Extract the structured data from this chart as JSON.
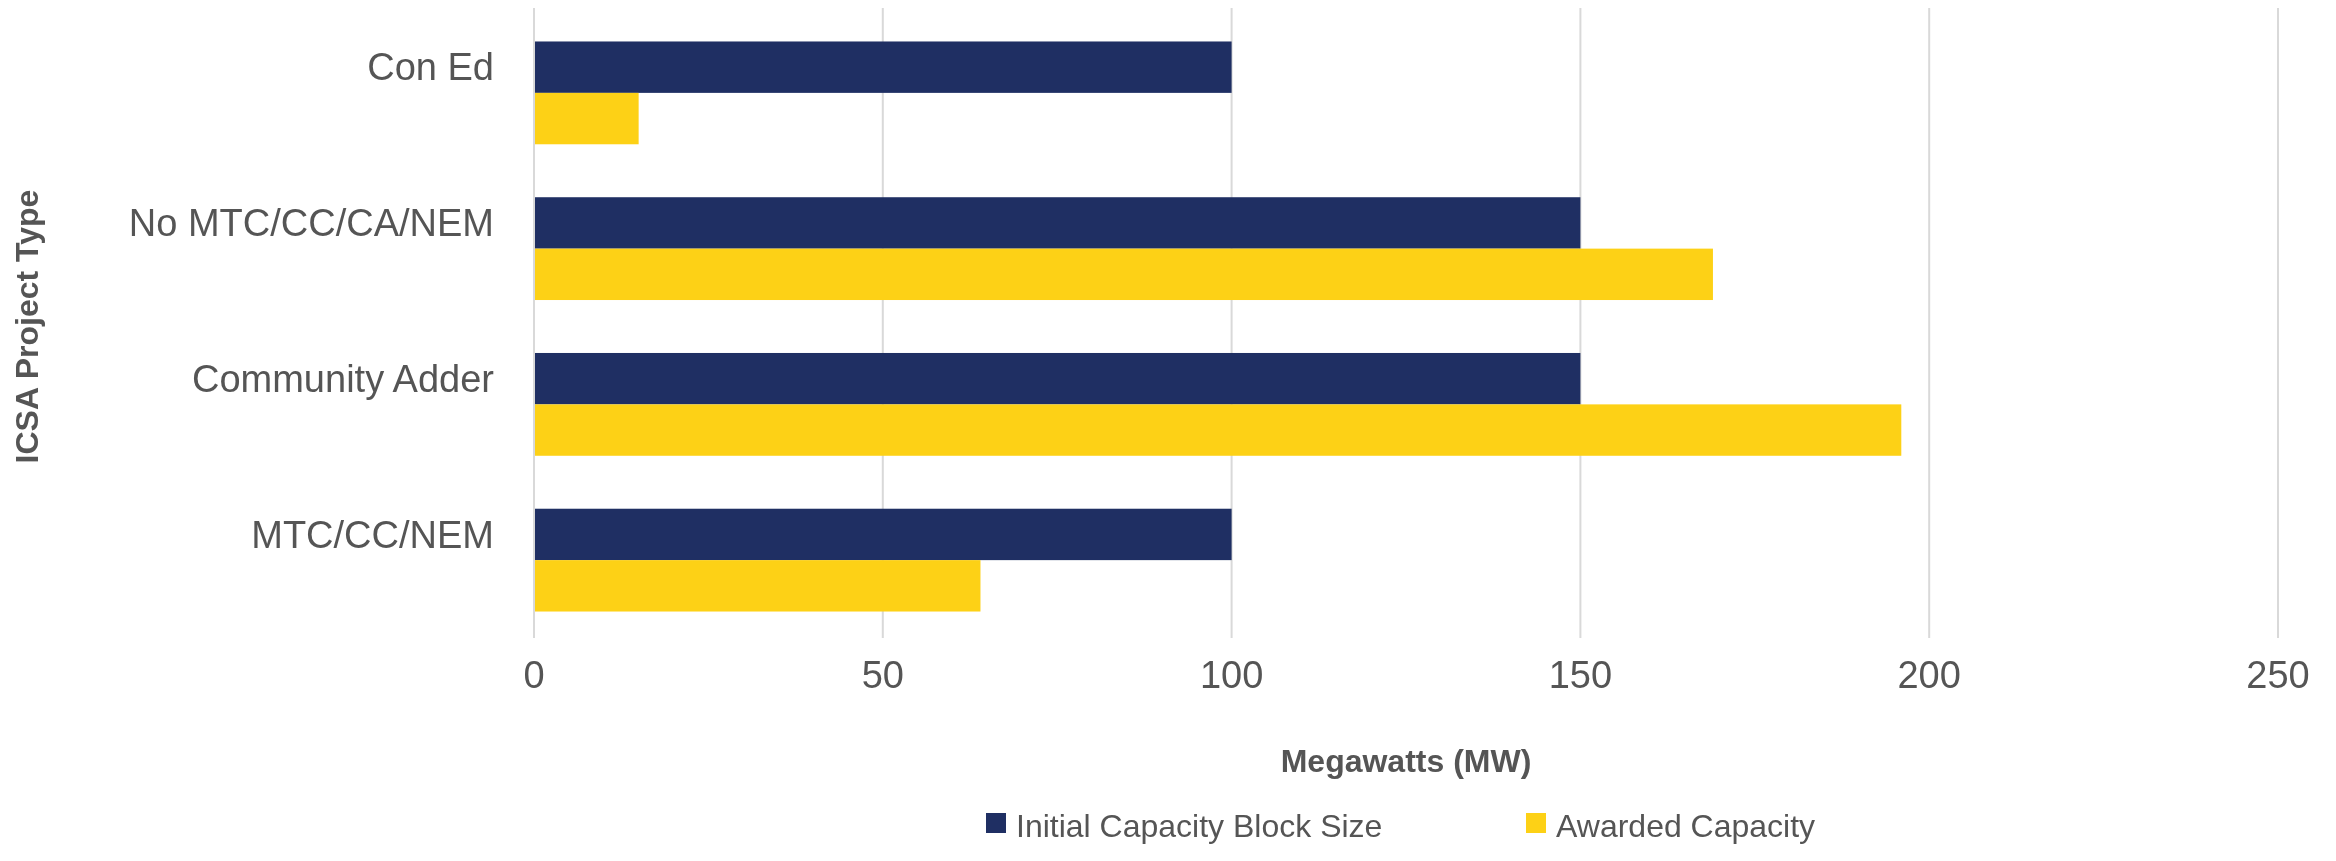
{
  "chart_data": {
    "type": "bar",
    "orientation": "horizontal",
    "xlabel": "Megawatts (MW)",
    "ylabel": "ICSA Project Type",
    "categories": [
      "Con Ed",
      "No MTC/CC/CA/NEM",
      "Community Adder",
      "MTC/CC/NEM"
    ],
    "series": [
      {
        "name": "Initial Capacity Block Size",
        "color": "#1f2f63",
        "values": [
          100,
          150,
          150,
          100
        ]
      },
      {
        "name": "Awarded Capacity",
        "color": "#fdd116",
        "values": [
          15,
          169,
          196,
          64
        ]
      }
    ],
    "xlim": [
      0,
      250
    ],
    "xticks": [
      0,
      50,
      100,
      150,
      200,
      250
    ],
    "grid": "x",
    "legend": "bottom"
  }
}
